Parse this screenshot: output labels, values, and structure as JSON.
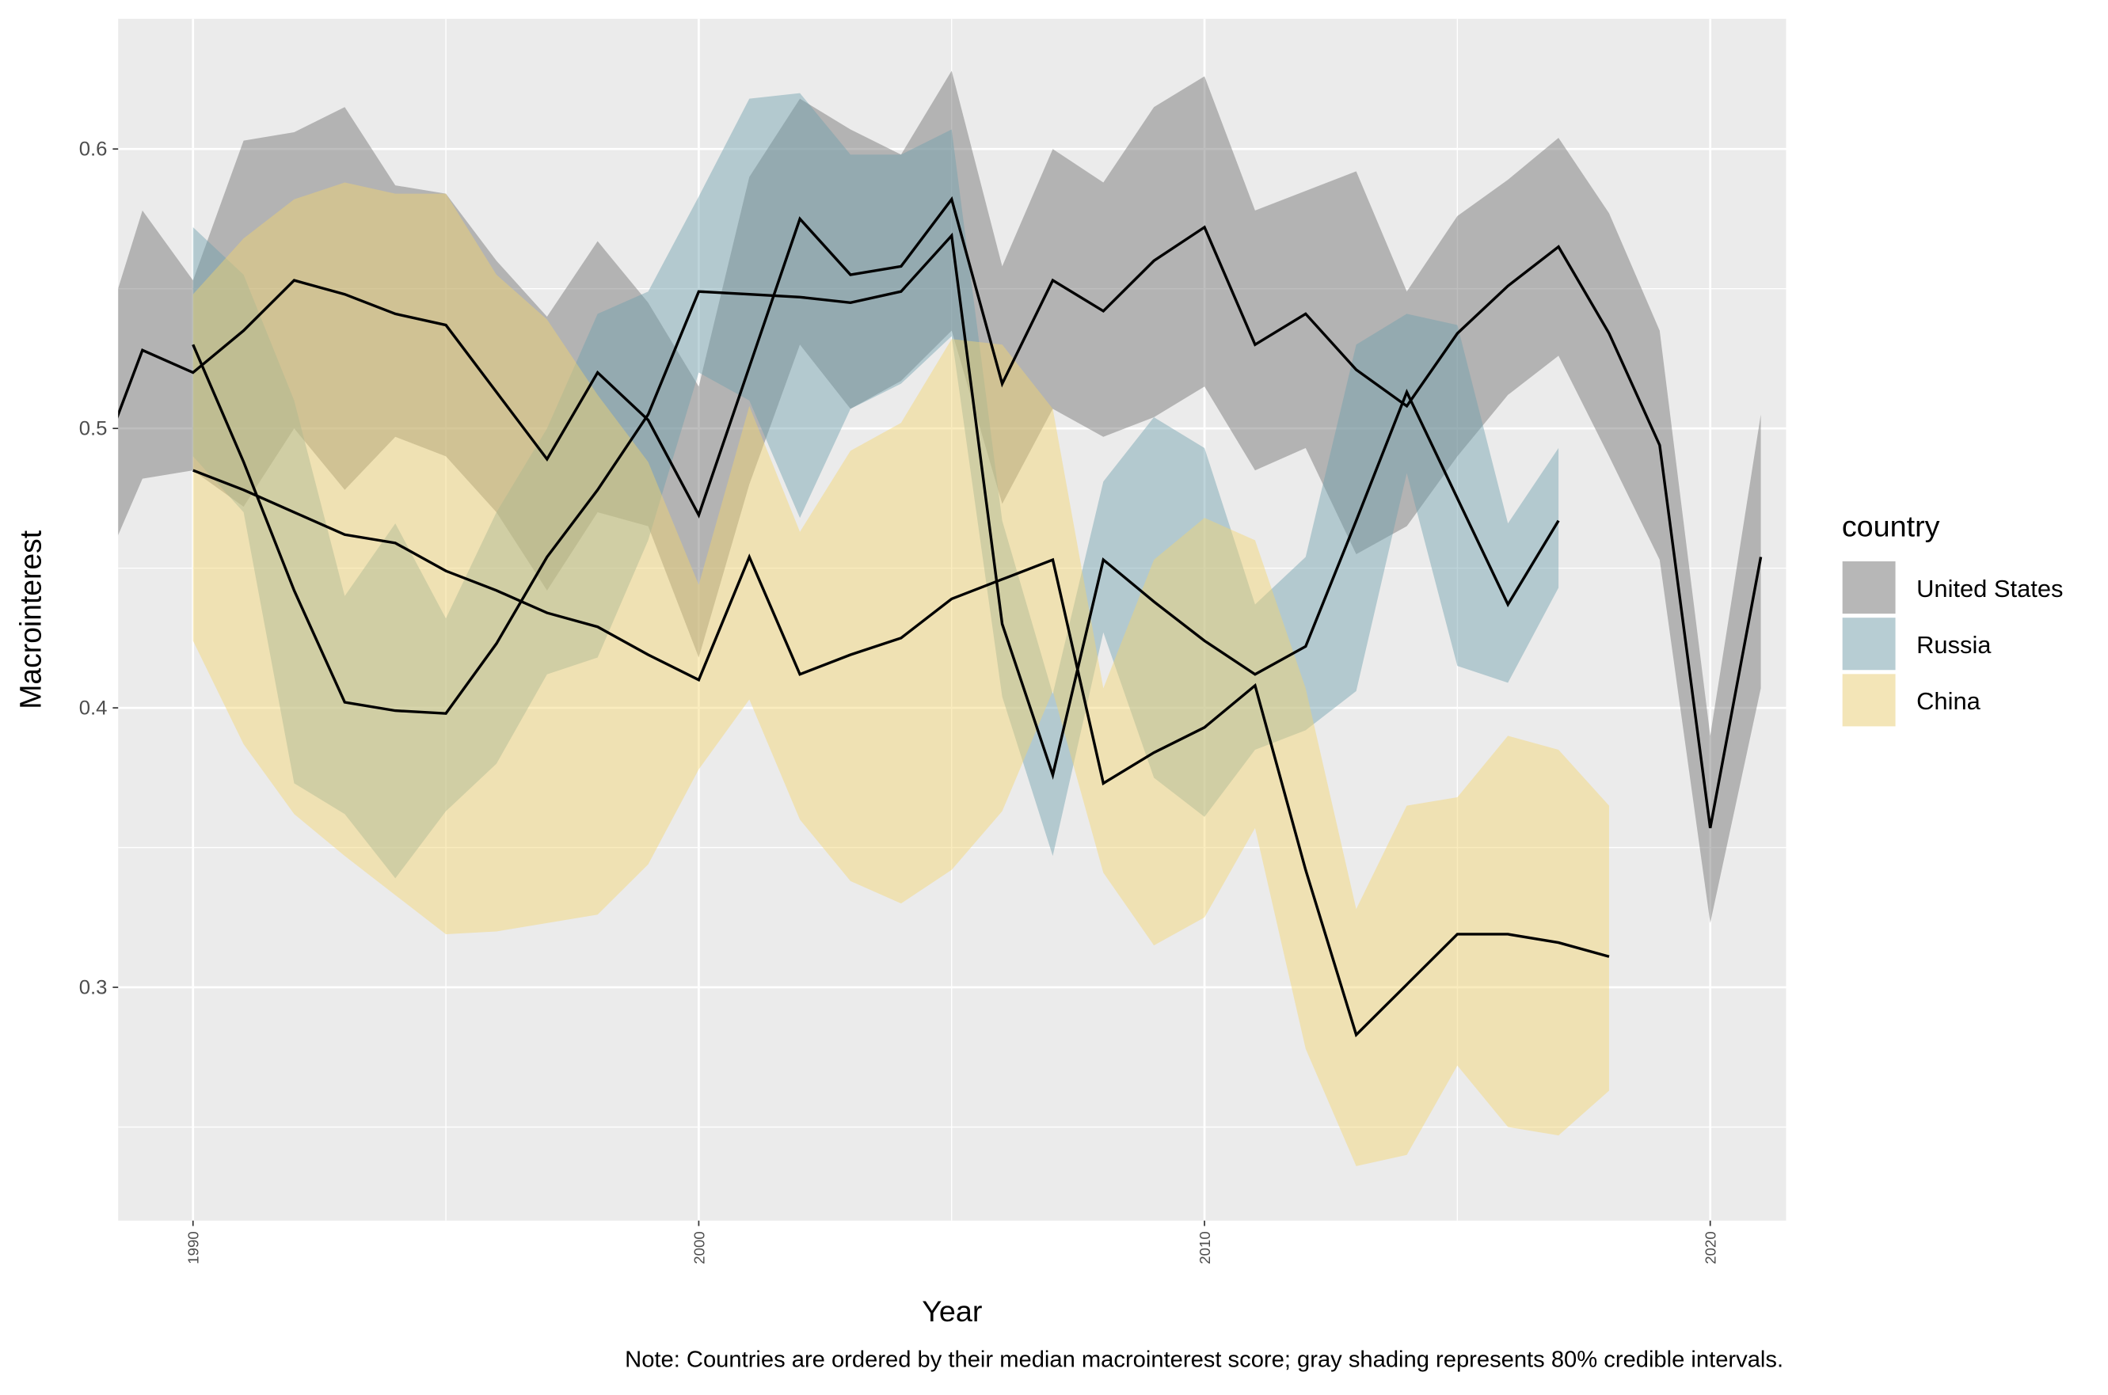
{
  "chart_data": {
    "type": "ribbon-line",
    "x_label": "Year",
    "y_label": "Macrointerest",
    "note": "Note: Countries are ordered by their median macrointerest score; gray shading represents 80% credible intervals.",
    "legend_title": "country",
    "legend_position": "right",
    "grid": true,
    "minor_grid": true,
    "ribbon_opacity": 0.45,
    "line_color": "#000000",
    "panel_background": "#ebebeb",
    "xlim": [
      1988.52,
      2021.5
    ],
    "xticks": [
      1990,
      2000,
      2010,
      2020
    ],
    "ylim": [
      0.2165,
      0.6466
    ],
    "yticks": [
      0.3,
      0.4,
      0.5,
      0.6
    ],
    "series": [
      {
        "name": "United States",
        "color": "#6e6e6e",
        "x": [
          1988,
          1989,
          1990,
          1991,
          1992,
          1993,
          1994,
          1995,
          1996,
          1997,
          1998,
          1999,
          2000,
          2001,
          2002,
          2003,
          2004,
          2005,
          2006,
          2007,
          2008,
          2009,
          2010,
          2011,
          2012,
          2013,
          2014,
          2015,
          2016,
          2017,
          2018,
          2019,
          2020,
          2021
        ],
        "values": [
          0.48,
          0.528,
          0.52,
          0.535,
          0.553,
          0.548,
          0.541,
          0.537,
          0.513,
          0.489,
          0.52,
          0.503,
          0.469,
          0.522,
          0.575,
          0.555,
          0.558,
          0.582,
          0.516,
          0.553,
          0.542,
          0.56,
          0.572,
          0.53,
          0.541,
          0.521,
          0.508,
          0.534,
          0.551,
          0.565,
          0.534,
          0.494,
          0.357,
          0.454
        ],
        "lower": [
          0.44,
          0.482,
          0.485,
          0.472,
          0.5,
          0.478,
          0.497,
          0.49,
          0.47,
          0.442,
          0.47,
          0.465,
          0.418,
          0.48,
          0.53,
          0.507,
          0.517,
          0.535,
          0.473,
          0.507,
          0.497,
          0.504,
          0.515,
          0.485,
          0.493,
          0.455,
          0.465,
          0.49,
          0.512,
          0.526,
          0.49,
          0.453,
          0.323,
          0.407
        ],
        "upper": [
          0.52,
          0.578,
          0.553,
          0.603,
          0.606,
          0.615,
          0.587,
          0.584,
          0.56,
          0.54,
          0.567,
          0.545,
          0.515,
          0.59,
          0.618,
          0.607,
          0.598,
          0.628,
          0.558,
          0.6,
          0.588,
          0.615,
          0.626,
          0.578,
          0.585,
          0.592,
          0.549,
          0.576,
          0.589,
          0.604,
          0.577,
          0.535,
          0.39,
          0.505
        ]
      },
      {
        "name": "Russia",
        "color": "#6f9fac",
        "x": [
          1990,
          1991,
          1992,
          1993,
          1994,
          1995,
          1996,
          1997,
          1998,
          1999,
          2000,
          2001,
          2002,
          2003,
          2004,
          2005,
          2006,
          2007,
          2008,
          2009,
          2010,
          2011,
          2012,
          2013,
          2014,
          2015,
          2016,
          2017
        ],
        "values": [
          0.53,
          0.488,
          0.442,
          0.402,
          0.399,
          0.398,
          0.423,
          0.454,
          0.478,
          0.505,
          0.549,
          0.548,
          0.547,
          0.545,
          0.549,
          0.569,
          0.43,
          0.376,
          0.453,
          0.438,
          0.424,
          0.412,
          0.422,
          0.467,
          0.513,
          0.475,
          0.437,
          0.467
        ],
        "lower": [
          0.49,
          0.47,
          0.373,
          0.362,
          0.339,
          0.363,
          0.38,
          0.412,
          0.418,
          0.46,
          0.52,
          0.51,
          0.468,
          0.507,
          0.516,
          0.533,
          0.404,
          0.347,
          0.427,
          0.375,
          0.361,
          0.385,
          0.392,
          0.406,
          0.484,
          0.415,
          0.409,
          0.443
        ],
        "upper": [
          0.572,
          0.555,
          0.51,
          0.44,
          0.466,
          0.432,
          0.47,
          0.5,
          0.541,
          0.549,
          0.583,
          0.618,
          0.62,
          0.598,
          0.598,
          0.607,
          0.467,
          0.405,
          0.481,
          0.504,
          0.493,
          0.437,
          0.454,
          0.53,
          0.541,
          0.537,
          0.466,
          0.493
        ]
      },
      {
        "name": "China",
        "color": "#f5d56e",
        "x": [
          1990,
          1991,
          1992,
          1993,
          1994,
          1995,
          1996,
          1997,
          1998,
          1999,
          2000,
          2001,
          2002,
          2003,
          2004,
          2005,
          2006,
          2007,
          2008,
          2009,
          2010,
          2011,
          2012,
          2013,
          2014,
          2015,
          2016,
          2017,
          2018
        ],
        "values": [
          0.485,
          0.478,
          0.47,
          0.462,
          0.459,
          0.449,
          0.442,
          0.434,
          0.429,
          0.419,
          0.41,
          0.454,
          0.412,
          0.419,
          0.425,
          0.439,
          0.446,
          0.453,
          0.373,
          0.384,
          0.393,
          0.408,
          0.342,
          0.283,
          0.301,
          0.319,
          0.319,
          0.316,
          0.311
        ],
        "lower": [
          0.424,
          0.387,
          0.362,
          0.347,
          0.333,
          0.319,
          0.32,
          0.323,
          0.326,
          0.344,
          0.378,
          0.403,
          0.36,
          0.338,
          0.33,
          0.342,
          0.363,
          0.406,
          0.341,
          0.315,
          0.325,
          0.357,
          0.278,
          0.236,
          0.24,
          0.272,
          0.25,
          0.247,
          0.263
        ],
        "upper": [
          0.548,
          0.568,
          0.582,
          0.588,
          0.584,
          0.584,
          0.555,
          0.539,
          0.512,
          0.488,
          0.444,
          0.508,
          0.463,
          0.492,
          0.502,
          0.532,
          0.53,
          0.507,
          0.407,
          0.453,
          0.468,
          0.46,
          0.407,
          0.328,
          0.365,
          0.368,
          0.39,
          0.385,
          0.365
        ]
      }
    ]
  }
}
